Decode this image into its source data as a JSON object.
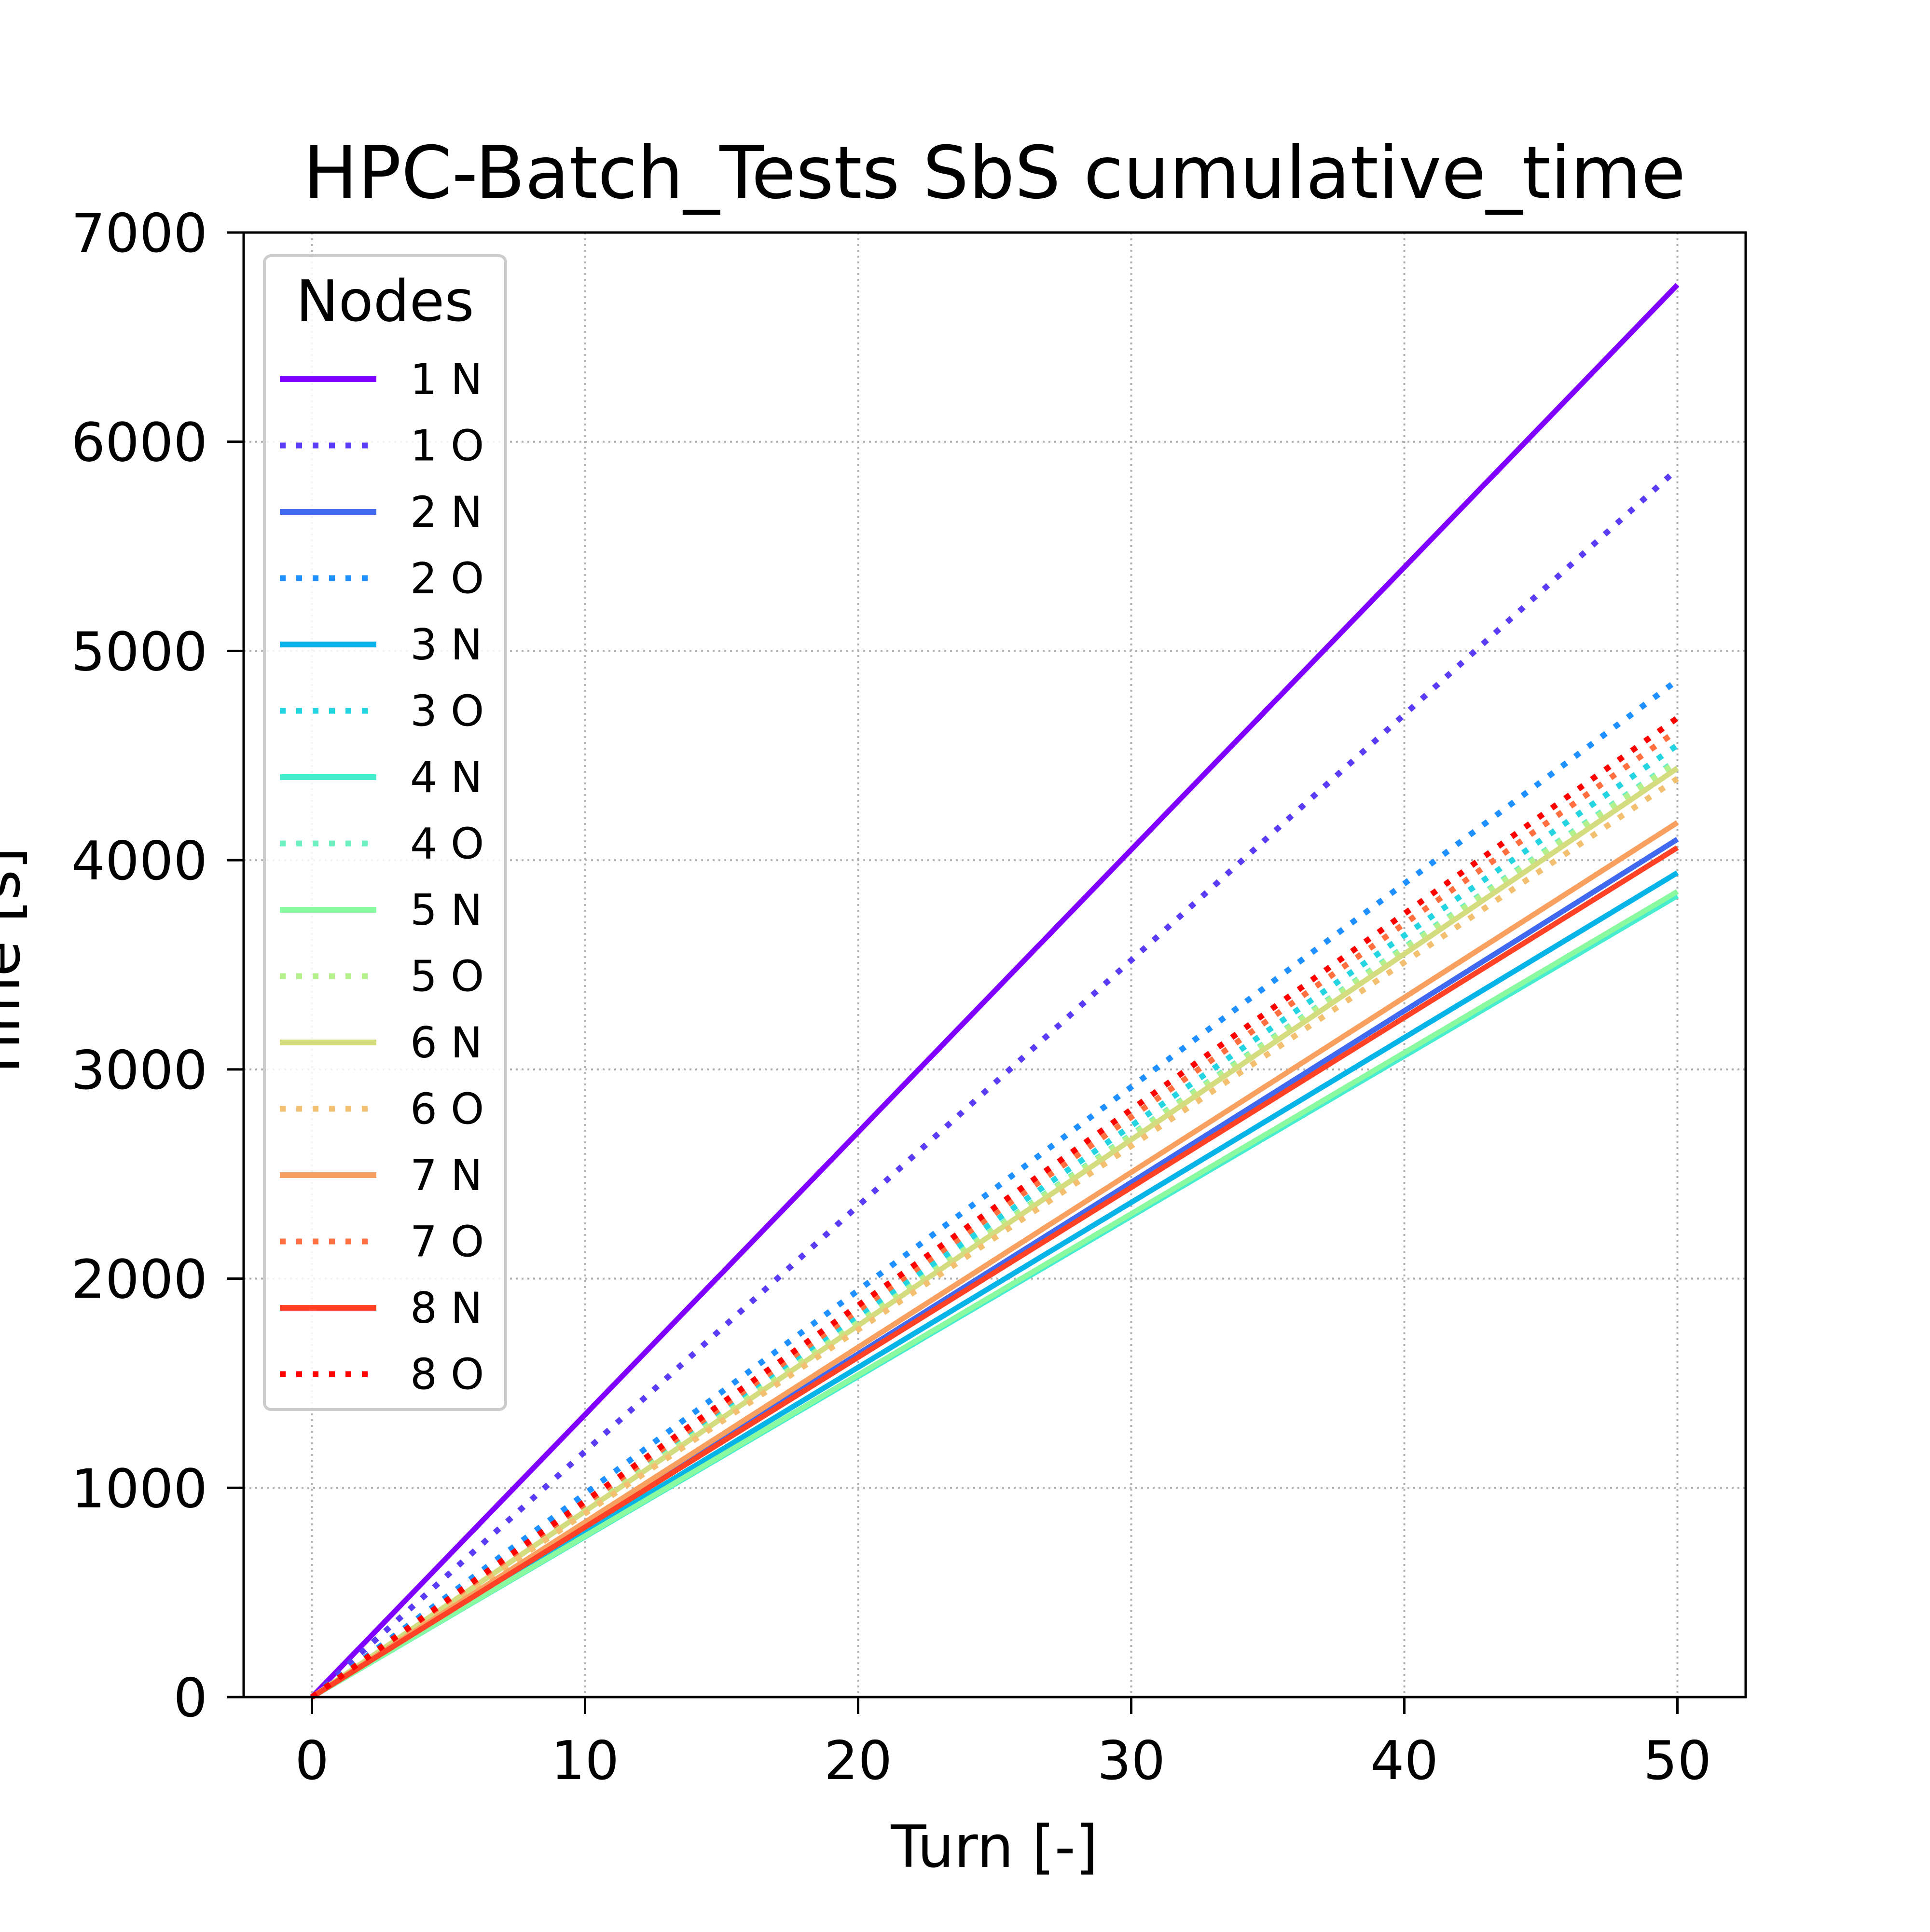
{
  "chart_data": {
    "type": "line",
    "title": "HPC-Batch_Tests SbS cumulative_time",
    "xlabel": "Turn [-]",
    "ylabel": "Time [s]",
    "xlim": [
      -2.5,
      52.5
    ],
    "ylim": [
      0,
      7000
    ],
    "x_ticks": [
      "0",
      "10",
      "20",
      "30",
      "40",
      "50"
    ],
    "y_ticks": [
      "0",
      "1000",
      "2000",
      "3000",
      "4000",
      "5000",
      "6000",
      "7000"
    ],
    "grid": true,
    "legend": {
      "title": "Nodes",
      "placement": "upper-left"
    },
    "x": [
      0,
      50
    ],
    "series": [
      {
        "name": "1 N",
        "values": [
          0,
          6750
        ],
        "style": "solid",
        "color": "#7f00ff"
      },
      {
        "name": "1 O",
        "values": [
          0,
          5870
        ],
        "style": "dotted",
        "color": "#5a3cf5"
      },
      {
        "name": "2 N",
        "values": [
          0,
          4100
        ],
        "style": "solid",
        "color": "#4169f0"
      },
      {
        "name": "2 O",
        "values": [
          0,
          4860
        ],
        "style": "dotted",
        "color": "#1e90ff"
      },
      {
        "name": "3 N",
        "values": [
          0,
          3940
        ],
        "style": "solid",
        "color": "#06b4e8"
      },
      {
        "name": "3 O",
        "values": [
          0,
          4550
        ],
        "style": "dotted",
        "color": "#24d4e0"
      },
      {
        "name": "4 N",
        "values": [
          0,
          3830
        ],
        "style": "solid",
        "color": "#48ecce"
      },
      {
        "name": "4 O",
        "values": [
          0,
          4480
        ],
        "style": "dotted",
        "color": "#6ff0c0"
      },
      {
        "name": "5 N",
        "values": [
          0,
          3850
        ],
        "style": "solid",
        "color": "#8afaa0"
      },
      {
        "name": "5 O",
        "values": [
          0,
          4470
        ],
        "style": "dotted",
        "color": "#b4f08c"
      },
      {
        "name": "6 N",
        "values": [
          0,
          4440
        ],
        "style": "solid",
        "color": "#d4dc80"
      },
      {
        "name": "6 O",
        "values": [
          0,
          4390
        ],
        "style": "dotted",
        "color": "#f2c070"
      },
      {
        "name": "7 N",
        "values": [
          0,
          4180
        ],
        "style": "solid",
        "color": "#f8a060"
      },
      {
        "name": "7 O",
        "values": [
          0,
          4620
        ],
        "style": "dotted",
        "color": "#ff6f40"
      },
      {
        "name": "8 N",
        "values": [
          0,
          4060
        ],
        "style": "solid",
        "color": "#ff4126"
      },
      {
        "name": "8 O",
        "values": [
          0,
          4680
        ],
        "style": "dotted",
        "color": "#ff0000"
      }
    ]
  }
}
